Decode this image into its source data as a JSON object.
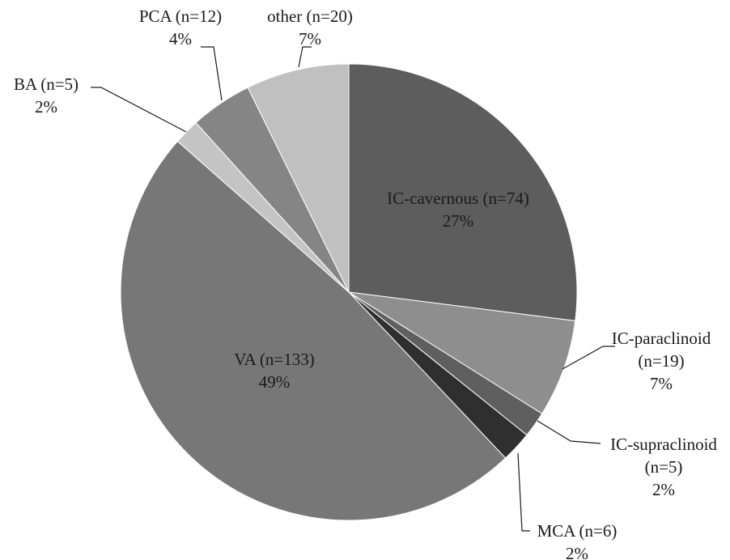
{
  "chart_data": {
    "type": "pie",
    "start_angle_deg": 0,
    "direction": "clockwise",
    "slices": [
      {
        "label": "IC-cavernous (n=74)",
        "n": 74,
        "percent_label": "27%",
        "color": "#5d5d5d"
      },
      {
        "label": "IC-paraclinoid (n=19)",
        "n": 19,
        "percent_label": "7%",
        "color": "#8e8e8e"
      },
      {
        "label": "IC-supraclinoid (n=5)",
        "n": 5,
        "percent_label": "2%",
        "color": "#5f5f5f"
      },
      {
        "label": "MCA (n=6)",
        "n": 6,
        "percent_label": "2%",
        "color": "#2f2f2f"
      },
      {
        "label": "VA (n=133)",
        "n": 133,
        "percent_label": "49%",
        "color": "#777777"
      },
      {
        "label": "BA (n=5)",
        "n": 5,
        "percent_label": "2%",
        "color": "#c4c4c4"
      },
      {
        "label": "PCA (n=12)",
        "n": 12,
        "percent_label": "4%",
        "color": "#858585"
      },
      {
        "label": "other (n=20)",
        "n": 20,
        "percent_label": "7%",
        "color": "#c0c0c0"
      }
    ],
    "labels": [
      {
        "slice": 0,
        "lines": [
          "IC-cavernous (n=74)",
          "27%"
        ]
      },
      {
        "slice": 1,
        "lines": [
          "IC-paraclinoid",
          "(n=19)",
          "7%"
        ]
      },
      {
        "slice": 2,
        "lines": [
          "IC-supraclinoid",
          "(n=5)",
          "2%"
        ]
      },
      {
        "slice": 3,
        "lines": [
          "MCA (n=6)",
          "2%"
        ]
      },
      {
        "slice": 4,
        "lines": [
          "VA (n=133)",
          "49%"
        ]
      },
      {
        "slice": 5,
        "lines": [
          "BA (n=5)",
          "2%"
        ]
      },
      {
        "slice": 6,
        "lines": [
          "PCA (n=12)",
          "4%"
        ]
      },
      {
        "slice": 7,
        "lines": [
          "other (n=20)",
          "7%"
        ]
      }
    ]
  }
}
